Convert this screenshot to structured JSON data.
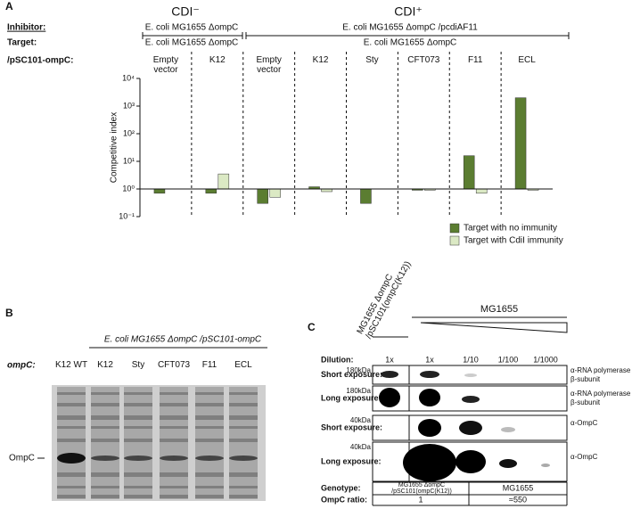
{
  "chart_data": {
    "type": "bar",
    "panel_label": "A",
    "log_scale": true,
    "groups": [
      {
        "title": "CDI⁻",
        "inhibitor": "E. coli MG1655 ΔompC",
        "target": "E. coli MG1655 ΔompC"
      },
      {
        "title": "CDI⁺",
        "inhibitor": "E. coli MG1655 ΔompC /pcdiAF11",
        "target": "E. coli MG1655 ΔompC"
      }
    ],
    "inhibitor_label": "Inhibitor:",
    "target_label": "Target:",
    "plasmid_label": "/pSC101-ompC:",
    "categories": [
      "Empty vector",
      "K12",
      "Empty vector",
      "K12",
      "Sty",
      "CFT073",
      "F11",
      "ECL"
    ],
    "series": [
      {
        "name": "Target with no immunity",
        "color": "#5b7d31",
        "values": [
          0.7,
          0.7,
          0.3,
          1.2,
          0.3,
          0.9,
          16,
          2000
        ]
      },
      {
        "name": "Target with CdiI immunity",
        "color": "#dbe9c4",
        "values": [
          null,
          3.5,
          0.5,
          0.8,
          1.0,
          0.9,
          0.7,
          0.9
        ]
      }
    ],
    "y_label": "Competitive index",
    "ylim": [
      0.1,
      10000
    ],
    "yticks": [
      {
        "value": 0.1,
        "label": "10⁻¹"
      },
      {
        "value": 1,
        "label": "10⁰"
      },
      {
        "value": 10,
        "label": "10¹"
      },
      {
        "value": 100,
        "label": "10²"
      },
      {
        "value": 1000,
        "label": "10³"
      },
      {
        "value": 10000,
        "label": "10⁴"
      }
    ],
    "legend": "lower right"
  },
  "panel_b": {
    "label": "B",
    "header": "E. coli MG1655 ΔompC /pSC101-ompC",
    "row_label": "ompC:",
    "lanes": [
      "K12 WT",
      "K12",
      "Sty",
      "CFT073",
      "F11",
      "ECL"
    ],
    "band": "OmpC"
  },
  "panel_c": {
    "label": "C",
    "strain_1": "MG1655 ΔompC /pSC101(ompC(K12))",
    "strain_2": "MG1655",
    "dilution_label": "Dilution:",
    "dilutions": [
      "1x",
      "1x",
      "1/10",
      "1/100",
      "1/1000"
    ],
    "rows": [
      {
        "exposure": "Short exposure:",
        "marker": "180kDa",
        "antibody": "α-RNA polymerase β-subunit"
      },
      {
        "exposure": "Long exposure:",
        "marker": "180kDa",
        "antibody": "α-RNA polymerase β-subunit"
      },
      {
        "exposure": "Short exposure:",
        "marker": "40kDa",
        "antibody": "α-OmpC"
      },
      {
        "exposure": "Long exposure:",
        "marker": "40kDa",
        "antibody": "α-OmpC"
      }
    ],
    "genotype_label": "Genotype:",
    "genotypes": [
      "MG1655 ΔompC /pSC101(ompC(K12))",
      "MG1655"
    ],
    "ratio_label": "OmpC ratio:",
    "ratios": [
      "1",
      "≈550"
    ]
  }
}
